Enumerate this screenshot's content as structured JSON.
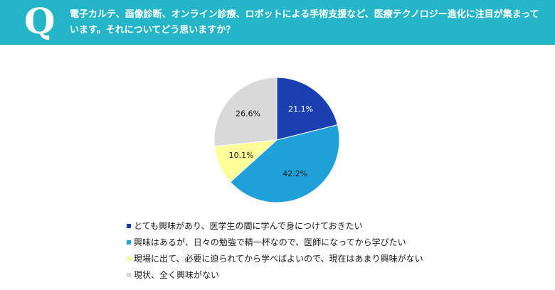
{
  "header": {
    "badge": "Q",
    "question": "電子カルテ、画像診断、オンライン診療、ロボットによる手術支援など、医療テクノロジー進化に注目が集まっています。それについてどう思いますか？"
  },
  "colors": {
    "header_bg": "#25b5c9",
    "slice_colors": [
      "#1a3fb0",
      "#1fa0d8",
      "#ffff99",
      "#d9d9d9"
    ],
    "slice_edge": "#ffffff"
  },
  "chart_data": {
    "type": "pie",
    "title": "",
    "unit": "%",
    "start_angle_deg": 0,
    "direction": "clockwise",
    "categories": [
      "とても興味があり、医学生の間に学んで身につけておきたい",
      "興味はあるが、日々の勉強で精一杯なので、医師になってから学びたい",
      "現場に出て、必要に迫られてから学べばよいので、現在はあまり興味がない",
      "現状、全く興味がない"
    ],
    "values": [
      21.1,
      42.2,
      10.1,
      26.6
    ],
    "labels": [
      "21.1%",
      "42.2%",
      "10.1%",
      "26.6%"
    ],
    "legend_position": "bottom"
  }
}
